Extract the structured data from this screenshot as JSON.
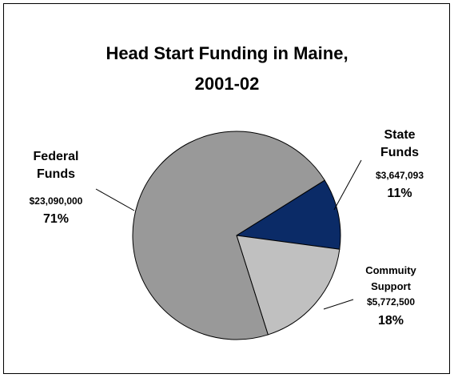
{
  "chart_data": {
    "type": "pie",
    "title": "Head Start Funding in Maine, 2001-02",
    "categories": [
      "State Funds",
      "Commuity Support",
      "Federal Funds"
    ],
    "values": [
      11,
      18,
      71
    ],
    "value_labels": [
      "11%",
      "18%",
      "71%"
    ],
    "amounts": [
      3647093,
      5772500,
      23090000
    ],
    "amount_labels": [
      "$3,647,093",
      "$5,772,500",
      "$23,090,000"
    ],
    "colors": [
      "#0b2b67",
      "#c0c0c0",
      "#999999"
    ]
  }
}
